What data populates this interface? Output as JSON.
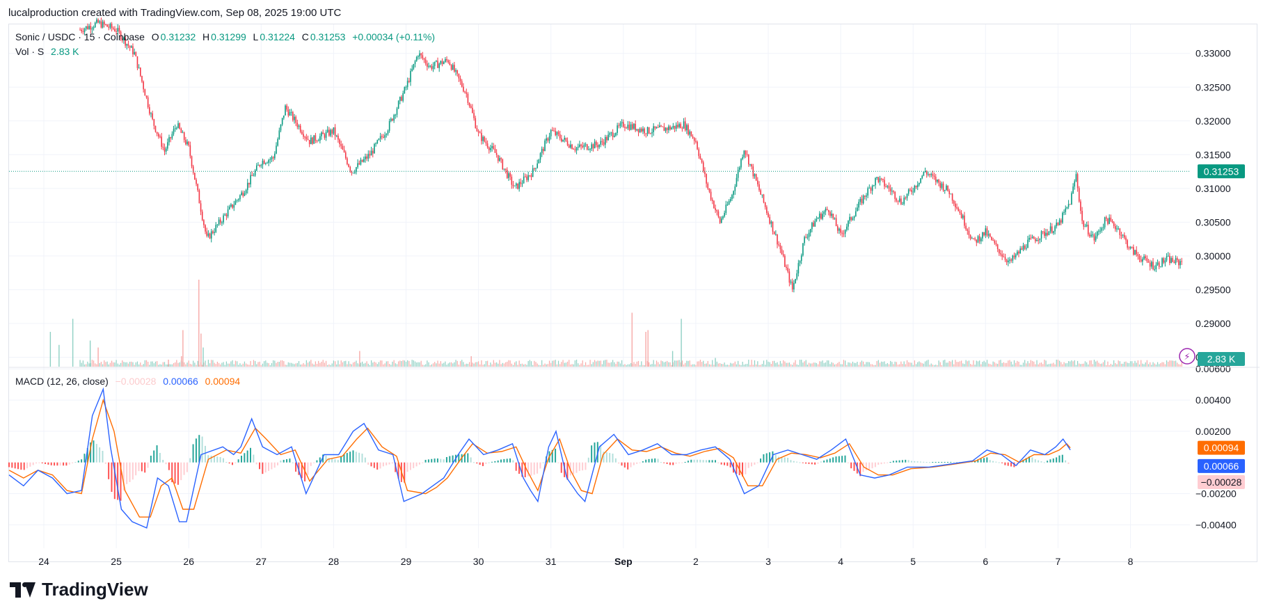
{
  "header": {
    "credit": "lucalproduction created with TradingView.com, Sep 08, 2025 19:00 UTC"
  },
  "legend": {
    "symbol": "Sonic / USDC · 15 · Coinbase",
    "o_label": "O",
    "o_value": "0.31232",
    "h_label": "H",
    "h_value": "0.31299",
    "l_label": "L",
    "l_value": "0.31224",
    "c_label": "C",
    "c_value": "0.31253",
    "change": "+0.00034 (+0.11%)",
    "vol_label": "Vol · S",
    "vol_value": "2.83 K"
  },
  "macd_legend": {
    "label": "MACD (12, 26, close)",
    "hist": "−0.00028",
    "macd": "0.00066",
    "signal": "0.00094"
  },
  "brand": {
    "name": "TradingView"
  },
  "colors": {
    "up": "#089981",
    "down": "#f23645",
    "macd": "#2962ff",
    "signal": "#ff6d00",
    "hist_up": "#26a69a",
    "hist_down": "#ff5252",
    "grid": "#f0f3fa"
  },
  "chart_data": [
    {
      "type": "candlestick",
      "title": "Sonic / USDC · 15 · Coinbase",
      "x_tick_labels": [
        "24",
        "25",
        "26",
        "27",
        "28",
        "29",
        "30",
        "31",
        "Sep",
        "2",
        "3",
        "4",
        "5",
        "6",
        "7",
        "8"
      ],
      "y_tick_labels": [
        "0.33000",
        "0.32500",
        "0.32000",
        "0.31500",
        "0.31000",
        "0.30500",
        "0.30000",
        "0.29500",
        "0.29000",
        "0.28500"
      ],
      "ylim": [
        0.2835,
        0.3343
      ],
      "last_price_label": "0.31253",
      "last_price": 0.31253,
      "close_path": [
        [
          "2025-08-24T12:00",
          0.3335
        ],
        [
          "2025-08-24T18:00",
          0.3345
        ],
        [
          "2025-08-25T00:00",
          0.3335
        ],
        [
          "2025-08-25T06:00",
          0.33
        ],
        [
          "2025-08-25T12:00",
          0.32
        ],
        [
          "2025-08-25T16:00",
          0.3155
        ],
        [
          "2025-08-25T20:00",
          0.3195
        ],
        [
          "2025-08-26T00:00",
          0.316
        ],
        [
          "2025-08-26T06:00",
          0.3025
        ],
        [
          "2025-08-26T12:00",
          0.306
        ],
        [
          "2025-08-26T18:00",
          0.3095
        ],
        [
          "2025-08-27T00:00",
          0.314
        ],
        [
          "2025-08-27T04:00",
          0.3145
        ],
        [
          "2025-08-27T08:00",
          0.322
        ],
        [
          "2025-08-27T16:00",
          0.317
        ],
        [
          "2025-08-28T00:00",
          0.3185
        ],
        [
          "2025-08-28T06:00",
          0.3125
        ],
        [
          "2025-08-28T12:00",
          0.315
        ],
        [
          "2025-08-28T18:00",
          0.319
        ],
        [
          "2025-08-29T00:00",
          0.325
        ],
        [
          "2025-08-29T04:00",
          0.33
        ],
        [
          "2025-08-29T08:00",
          0.328
        ],
        [
          "2025-08-29T14:00",
          0.329
        ],
        [
          "2025-08-29T20:00",
          0.324
        ],
        [
          "2025-08-30T00:00",
          0.318
        ],
        [
          "2025-08-30T06:00",
          0.315
        ],
        [
          "2025-08-30T12:00",
          0.31
        ],
        [
          "2025-08-30T18:00",
          0.3125
        ],
        [
          "2025-08-31T00:00",
          0.3185
        ],
        [
          "2025-08-31T08:00",
          0.316
        ],
        [
          "2025-08-31T16:00",
          0.3165
        ],
        [
          "2025-09-01T00:00",
          0.3195
        ],
        [
          "2025-09-01T08:00",
          0.3185
        ],
        [
          "2025-09-01T16:00",
          0.319
        ],
        [
          "2025-09-01T20:00",
          0.3195
        ],
        [
          "2025-09-02T00:00",
          0.317
        ],
        [
          "2025-09-02T04:00",
          0.31
        ],
        [
          "2025-09-02T08:00",
          0.305
        ],
        [
          "2025-09-02T12:00",
          0.309
        ],
        [
          "2025-09-02T16:00",
          0.316
        ],
        [
          "2025-09-02T20:00",
          0.311
        ],
        [
          "2025-09-03T00:00",
          0.306
        ],
        [
          "2025-09-03T04:00",
          0.301
        ],
        [
          "2025-09-03T08:00",
          0.295
        ],
        [
          "2025-09-03T12:00",
          0.3025
        ],
        [
          "2025-09-03T16:00",
          0.3055
        ],
        [
          "2025-09-03T20:00",
          0.307
        ],
        [
          "2025-09-04T00:00",
          0.303
        ],
        [
          "2025-09-04T04:00",
          0.306
        ],
        [
          "2025-09-04T08:00",
          0.309
        ],
        [
          "2025-09-04T12:00",
          0.3115
        ],
        [
          "2025-09-04T16:00",
          0.31
        ],
        [
          "2025-09-04T20:00",
          0.308
        ],
        [
          "2025-09-05T00:00",
          0.31
        ],
        [
          "2025-09-05T04:00",
          0.3125
        ],
        [
          "2025-09-05T08:00",
          0.311
        ],
        [
          "2025-09-05T12:00",
          0.3095
        ],
        [
          "2025-09-05T16:00",
          0.306
        ],
        [
          "2025-09-05T20:00",
          0.302
        ],
        [
          "2025-09-06T00:00",
          0.3035
        ],
        [
          "2025-09-06T04:00",
          0.301
        ],
        [
          "2025-09-06T08:00",
          0.299
        ],
        [
          "2025-09-06T14:00",
          0.302
        ],
        [
          "2025-09-06T20:00",
          0.3035
        ],
        [
          "2025-09-07T00:00",
          0.3045
        ],
        [
          "2025-09-07T04:00",
          0.308
        ],
        [
          "2025-09-07T06:00",
          0.312
        ],
        [
          "2025-09-07T08:00",
          0.305
        ],
        [
          "2025-09-07T12:00",
          0.3025
        ],
        [
          "2025-09-07T16:00",
          0.3055
        ],
        [
          "2025-09-07T20:00",
          0.304
        ],
        [
          "2025-09-08T00:00",
          0.301
        ],
        [
          "2025-09-08T04:00",
          0.2995
        ],
        [
          "2025-09-08T08:00",
          0.2985
        ],
        [
          "2025-09-08T12:00",
          0.2995
        ],
        [
          "2025-09-08T16:00",
          0.299
        ],
        [
          "2025-09-08T20:00",
          0.3
        ],
        [
          "2025-09-09T00:00",
          0.3015
        ],
        [
          "2025-09-09T06:00",
          0.3025
        ],
        [
          "2025-09-09T12:00",
          0.303
        ],
        [
          "2025-09-09T18:00",
          0.305
        ],
        [
          "2025-09-10T00:00",
          0.3075
        ],
        [
          "2025-09-10T04:00",
          0.309
        ],
        [
          "2025-09-10T08:00",
          0.312
        ],
        [
          "2025-09-10T12:00",
          0.315
        ],
        [
          "2025-09-10T14:00",
          0.312
        ],
        [
          "2025-09-10T18:00",
          0.3125
        ]
      ]
    },
    {
      "type": "bar",
      "series": [
        {
          "name": "Vol · S",
          "last_value_label": "2.83 K"
        }
      ],
      "spikes_relative": [
        [
          0.09,
          0.4
        ],
        [
          0.21,
          0.25
        ],
        [
          0.4,
          0.55
        ],
        [
          0.64,
          0.3
        ],
        [
          0.75,
          0.22
        ],
        [
          1.72,
          0.08
        ],
        [
          1.9,
          0.12
        ],
        [
          1.92,
          0.42
        ],
        [
          2.14,
          1.0
        ],
        [
          2.17,
          0.38
        ],
        [
          2.2,
          0.22
        ],
        [
          4.36,
          0.18
        ],
        [
          5.9,
          0.12
        ],
        [
          8.12,
          0.62
        ],
        [
          8.31,
          0.4
        ],
        [
          8.34,
          0.42
        ],
        [
          8.8,
          0.55
        ],
        [
          8.68,
          0.18
        ],
        [
          9.27,
          0.1
        ]
      ]
    },
    {
      "type": "line",
      "title": "MACD (12, 26, close)",
      "y_tick_labels": [
        "0.00600",
        "0.00400",
        "0.00200",
        "−0.00200",
        "−0.00400"
      ],
      "ylim": [
        -0.0055,
        0.0061
      ],
      "series": [
        {
          "name": "MACD",
          "last_value_label": "0.00066"
        },
        {
          "name": "Signal",
          "last_value_label": "0.00094"
        },
        {
          "name": "Histogram",
          "last_value_label": "−0.00028"
        }
      ],
      "macd_path": [
        [
          0.0,
          -0.0008
        ],
        [
          0.2,
          -0.0015
        ],
        [
          0.4,
          -0.0005
        ],
        [
          0.6,
          -0.001
        ],
        [
          0.8,
          -0.002
        ],
        [
          1.0,
          -0.0018
        ],
        [
          1.15,
          0.003
        ],
        [
          1.3,
          0.0047
        ],
        [
          1.4,
          0.001
        ],
        [
          1.55,
          -0.003
        ],
        [
          1.7,
          -0.0038
        ],
        [
          1.9,
          -0.0042
        ],
        [
          2.05,
          -0.001
        ],
        [
          2.2,
          -0.0015
        ],
        [
          2.35,
          -0.0038
        ],
        [
          2.45,
          -0.0038
        ],
        [
          2.65,
          0.0005
        ],
        [
          2.95,
          0.001
        ],
        [
          3.1,
          0.0005
        ],
        [
          3.2,
          0.001
        ],
        [
          3.35,
          0.0028
        ],
        [
          3.5,
          0.001
        ],
        [
          3.7,
          0.0005
        ],
        [
          3.9,
          0.001
        ],
        [
          4.1,
          -0.002
        ],
        [
          4.35,
          0.0005
        ],
        [
          4.55,
          0.0005
        ],
        [
          4.75,
          0.002
        ],
        [
          4.9,
          0.0025
        ],
        [
          5.1,
          0.0008
        ],
        [
          5.3,
          0.0005
        ],
        [
          5.45,
          -0.0025
        ],
        [
          5.7,
          -0.002
        ],
        [
          5.85,
          -0.0015
        ],
        [
          6.0,
          -0.001
        ],
        [
          6.2,
          0.0005
        ],
        [
          6.35,
          0.0015
        ],
        [
          6.55,
          0.0005
        ],
        [
          6.75,
          0.0008
        ],
        [
          6.95,
          0.0012
        ],
        [
          7.1,
          -0.001
        ],
        [
          7.2,
          -0.0018
        ],
        [
          7.3,
          -0.0025
        ],
        [
          7.45,
          0.001
        ],
        [
          7.55,
          0.002
        ],
        [
          7.7,
          -0.001
        ],
        [
          7.85,
          -0.002
        ],
        [
          7.95,
          -0.0025
        ],
        [
          8.15,
          0.001
        ],
        [
          8.35,
          0.0018
        ],
        [
          8.55,
          0.0005
        ],
        [
          8.75,
          0.0008
        ],
        [
          8.95,
          0.0012
        ],
        [
          9.15,
          0.0005
        ],
        [
          9.35,
          0.0005
        ],
        [
          9.55,
          0.0008
        ],
        [
          9.75,
          0.001
        ],
        [
          9.95,
          0.0002
        ],
        [
          10.15,
          -0.002
        ],
        [
          10.35,
          -0.0015
        ],
        [
          10.55,
          0.0005
        ],
        [
          10.75,
          0.0008
        ],
        [
          10.95,
          0.0005
        ],
        [
          11.15,
          0.0002
        ],
        [
          11.35,
          0.0008
        ],
        [
          11.55,
          0.0015
        ],
        [
          11.75,
          -0.0008
        ],
        [
          11.95,
          -0.001
        ],
        [
          12.15,
          -0.0008
        ],
        [
          12.4,
          -0.0003
        ],
        [
          12.7,
          -0.0003
        ],
        [
          13.0,
          -0.0001
        ],
        [
          13.3,
          0.0001
        ],
        [
          13.5,
          0.0008
        ],
        [
          13.7,
          0.0005
        ],
        [
          13.9,
          -0.0002
        ],
        [
          14.1,
          0.0008
        ],
        [
          14.3,
          0.0005
        ],
        [
          14.45,
          0.001
        ],
        [
          14.55,
          0.0015
        ],
        [
          14.65,
          0.0008
        ]
      ],
      "signal_path": [
        [
          0.0,
          -0.0005
        ],
        [
          0.2,
          -0.001
        ],
        [
          0.4,
          -0.0005
        ],
        [
          0.6,
          -0.0008
        ],
        [
          0.8,
          -0.0018
        ],
        [
          1.0,
          -0.002
        ],
        [
          1.15,
          0.0015
        ],
        [
          1.3,
          0.004
        ],
        [
          1.45,
          0.002
        ],
        [
          1.6,
          -0.0018
        ],
        [
          1.8,
          -0.0035
        ],
        [
          1.95,
          -0.0035
        ],
        [
          2.1,
          -0.0015
        ],
        [
          2.25,
          -0.001
        ],
        [
          2.4,
          -0.003
        ],
        [
          2.55,
          -0.003
        ],
        [
          2.75,
          0.0002
        ],
        [
          3.0,
          0.0008
        ],
        [
          3.2,
          0.0006
        ],
        [
          3.4,
          0.0022
        ],
        [
          3.55,
          0.0015
        ],
        [
          3.75,
          0.0005
        ],
        [
          3.95,
          0.0008
        ],
        [
          4.15,
          -0.0012
        ],
        [
          4.4,
          0.0002
        ],
        [
          4.6,
          0.0004
        ],
        [
          4.8,
          0.0015
        ],
        [
          4.95,
          0.0022
        ],
        [
          5.15,
          0.001
        ],
        [
          5.35,
          0.0004
        ],
        [
          5.5,
          -0.0018
        ],
        [
          5.75,
          -0.002
        ],
        [
          5.9,
          -0.0016
        ],
        [
          6.05,
          -0.001
        ],
        [
          6.25,
          0.0003
        ],
        [
          6.4,
          0.0012
        ],
        [
          6.6,
          0.0006
        ],
        [
          6.8,
          0.0007
        ],
        [
          7.0,
          0.001
        ],
        [
          7.15,
          -0.0005
        ],
        [
          7.3,
          -0.0018
        ],
        [
          7.45,
          0.0003
        ],
        [
          7.6,
          0.0015
        ],
        [
          7.75,
          -0.0005
        ],
        [
          7.9,
          -0.0018
        ],
        [
          8.05,
          -0.002
        ],
        [
          8.2,
          0.0005
        ],
        [
          8.4,
          0.0015
        ],
        [
          8.6,
          0.0008
        ],
        [
          8.8,
          0.0007
        ],
        [
          9.0,
          0.001
        ],
        [
          9.2,
          0.0006
        ],
        [
          9.4,
          0.0004
        ],
        [
          9.6,
          0.0007
        ],
        [
          9.8,
          0.0009
        ],
        [
          10.0,
          0.0003
        ],
        [
          10.2,
          -0.0015
        ],
        [
          10.4,
          -0.0015
        ],
        [
          10.6,
          0.0002
        ],
        [
          10.8,
          0.0006
        ],
        [
          11.0,
          0.0005
        ],
        [
          11.2,
          0.0003
        ],
        [
          11.4,
          0.0006
        ],
        [
          11.6,
          0.0012
        ],
        [
          11.8,
          -0.0003
        ],
        [
          12.0,
          -0.0008
        ],
        [
          12.2,
          -0.0008
        ],
        [
          12.45,
          -0.0004
        ],
        [
          12.75,
          -0.0003
        ],
        [
          13.05,
          -0.0001
        ],
        [
          13.35,
          0.0001
        ],
        [
          13.55,
          0.0006
        ],
        [
          13.75,
          0.0005
        ],
        [
          13.95,
          0.0
        ],
        [
          14.15,
          0.0005
        ],
        [
          14.35,
          0.0005
        ],
        [
          14.5,
          0.0008
        ],
        [
          14.6,
          0.0012
        ],
        [
          14.65,
          0.00094
        ]
      ]
    }
  ]
}
